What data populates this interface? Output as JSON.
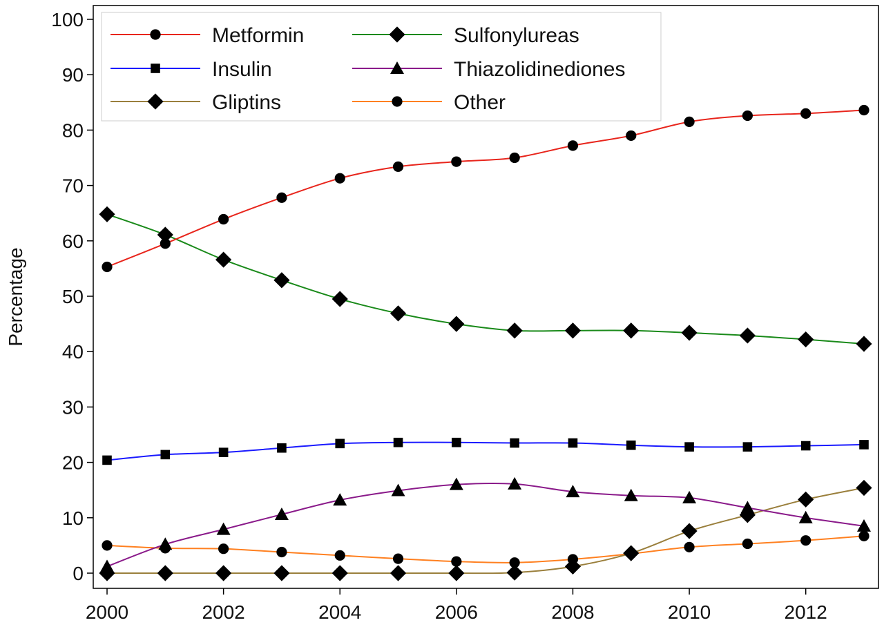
{
  "chart_data": {
    "type": "line",
    "title": "",
    "xlabel": "",
    "ylabel": "Percentage",
    "xlim": [
      2000,
      2013
    ],
    "ylim": [
      0,
      100
    ],
    "x_ticks": [
      2000,
      2002,
      2004,
      2006,
      2008,
      2010,
      2012
    ],
    "y_ticks": [
      0,
      10,
      20,
      30,
      40,
      50,
      60,
      70,
      80,
      90,
      100
    ],
    "grid": false,
    "legend_position": "top-left",
    "x": [
      2000,
      2001,
      2002,
      2003,
      2004,
      2005,
      2006,
      2007,
      2008,
      2009,
      2010,
      2011,
      2012,
      2013
    ],
    "series": [
      {
        "name": "Metformin",
        "color": "#e8251c",
        "marker": "circle",
        "values": [
          55.3,
          59.5,
          63.9,
          67.8,
          71.3,
          73.4,
          74.3,
          75.0,
          77.2,
          79.0,
          81.5,
          82.6,
          83.0,
          83.6
        ]
      },
      {
        "name": "Sulfonylureas",
        "color": "#1a8a1a",
        "marker": "diamond",
        "values": [
          64.8,
          61.1,
          56.6,
          52.9,
          49.5,
          46.9,
          45.0,
          43.8,
          43.8,
          43.8,
          43.4,
          42.9,
          42.2,
          41.4
        ]
      },
      {
        "name": "Insulin",
        "color": "#1a1aff",
        "marker": "square",
        "values": [
          20.4,
          21.4,
          21.8,
          22.6,
          23.4,
          23.6,
          23.6,
          23.5,
          23.5,
          23.1,
          22.8,
          22.8,
          23.0,
          23.2
        ]
      },
      {
        "name": "Thiazolidinediones",
        "color": "#8a1a8a",
        "marker": "triangle",
        "values": [
          1.2,
          5.2,
          7.9,
          10.6,
          13.2,
          14.9,
          16.0,
          16.1,
          14.7,
          14.0,
          13.6,
          11.8,
          10.0,
          8.5
        ]
      },
      {
        "name": "Gliptins",
        "color": "#9a7f3c",
        "marker": "diamond",
        "values": [
          0,
          0,
          0,
          0,
          0,
          0,
          0,
          0.1,
          1.2,
          3.6,
          7.6,
          10.5,
          13.3,
          15.4
        ]
      },
      {
        "name": "Other",
        "color": "#ff8020",
        "marker": "circle",
        "values": [
          5.0,
          4.5,
          4.4,
          3.8,
          3.2,
          2.6,
          2.1,
          1.9,
          2.5,
          3.5,
          4.7,
          5.3,
          5.9,
          6.7
        ]
      }
    ]
  }
}
